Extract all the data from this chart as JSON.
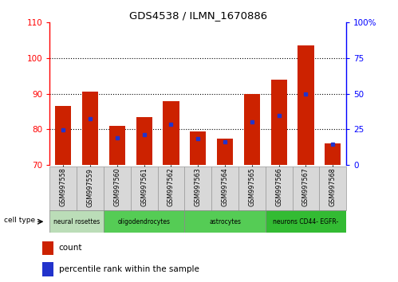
{
  "title": "GDS4538 / ILMN_1670886",
  "samples": [
    "GSM997558",
    "GSM997559",
    "GSM997560",
    "GSM997561",
    "GSM997562",
    "GSM997563",
    "GSM997564",
    "GSM997565",
    "GSM997566",
    "GSM997567",
    "GSM997568"
  ],
  "count_values": [
    86.5,
    90.5,
    81.0,
    83.5,
    88.0,
    79.5,
    77.5,
    90.0,
    94.0,
    103.5,
    76.0
  ],
  "percentile_values": [
    24.5,
    32.5,
    19.0,
    21.5,
    28.5,
    18.5,
    16.5,
    30.5,
    35.0,
    50.0,
    14.5
  ],
  "ylim_left": [
    70,
    110
  ],
  "ylim_right": [
    0,
    100
  ],
  "yticks_left": [
    70,
    80,
    90,
    100,
    110
  ],
  "yticks_right": [
    0,
    25,
    50,
    75,
    100
  ],
  "ytick_right_labels": [
    "0",
    "25",
    "50",
    "75",
    "100%"
  ],
  "bar_color": "#cc2200",
  "dot_color": "#2233cc",
  "legend_count_label": "count",
  "legend_pct_label": "percentile rank within the sample",
  "baseline": 70,
  "groups": [
    {
      "label": "neural rosettes",
      "start": 0,
      "end": 1,
      "color": "#bbddb8"
    },
    {
      "label": "oligodendrocytes",
      "start": 2,
      "end": 4,
      "color": "#55cc55"
    },
    {
      "label": "astrocytes",
      "start": 5,
      "end": 7,
      "color": "#55cc55"
    },
    {
      "label": "neurons CD44- EGFR-",
      "start": 8,
      "end": 10,
      "color": "#33bb33"
    }
  ],
  "sample_label_bg": "#d8d8d8",
  "grid_lines": [
    80,
    90,
    100
  ]
}
